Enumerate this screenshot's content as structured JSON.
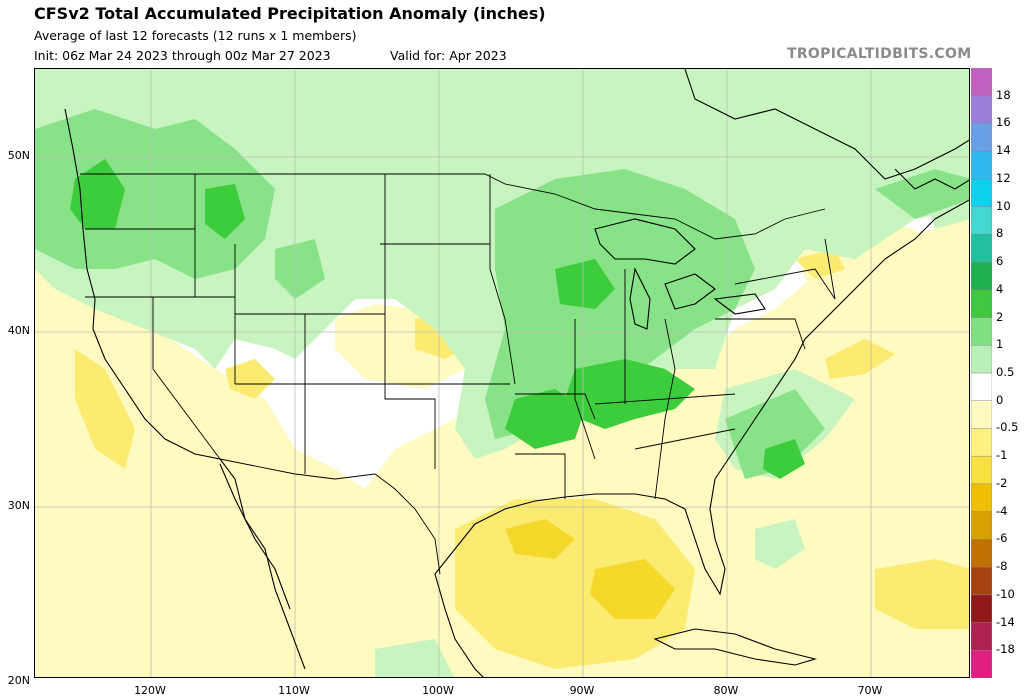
{
  "header": {
    "title": "CFSv2 Total Accumulated Precipitation Anomaly (inches)",
    "subtitle": "Average of last 12 forecasts (12 runs x 1 members)",
    "init": "Init: 06z Mar 24 2023 through 00z Mar 27 2023",
    "valid": "Valid for: Apr 2023",
    "watermark": "TROPICALTIDBITS.COM"
  },
  "axes": {
    "lat_labels": [
      "50N",
      "40N",
      "30N",
      "20N"
    ],
    "lon_labels": [
      "120W",
      "110W",
      "100W",
      "90W",
      "80W",
      "70W"
    ]
  },
  "colorbar": {
    "labels": [
      "18",
      "16",
      "14",
      "12",
      "10",
      "8",
      "6",
      "4",
      "2",
      "1",
      "0.5",
      "0",
      "-0.5",
      "-1",
      "-2",
      "-4",
      "-6",
      "-8",
      "-10",
      "-14",
      "-18"
    ],
    "colors": [
      "#c060c0",
      "#9a80d8",
      "#6aa0e8",
      "#30b8f0",
      "#10d0f0",
      "#40d8d0",
      "#20c0a0",
      "#20b050",
      "#40c840",
      "#80e080",
      "#b8f0b8",
      "#ffffff",
      "#fffac0",
      "#fff080",
      "#f8e040",
      "#f0c000",
      "#d8a000",
      "#c07000",
      "#a84010",
      "#901818",
      "#b02050",
      "#e02080"
    ],
    "colors_note": ""
  },
  "map_colors": {
    "green_light": "#c8f4c0",
    "green_mid": "#88e288",
    "green_dark": "#3ccc3c",
    "yellow_light": "#fffac0",
    "yellow_mid": "#fbeb70",
    "yellow_dark": "#f4d82a"
  }
}
